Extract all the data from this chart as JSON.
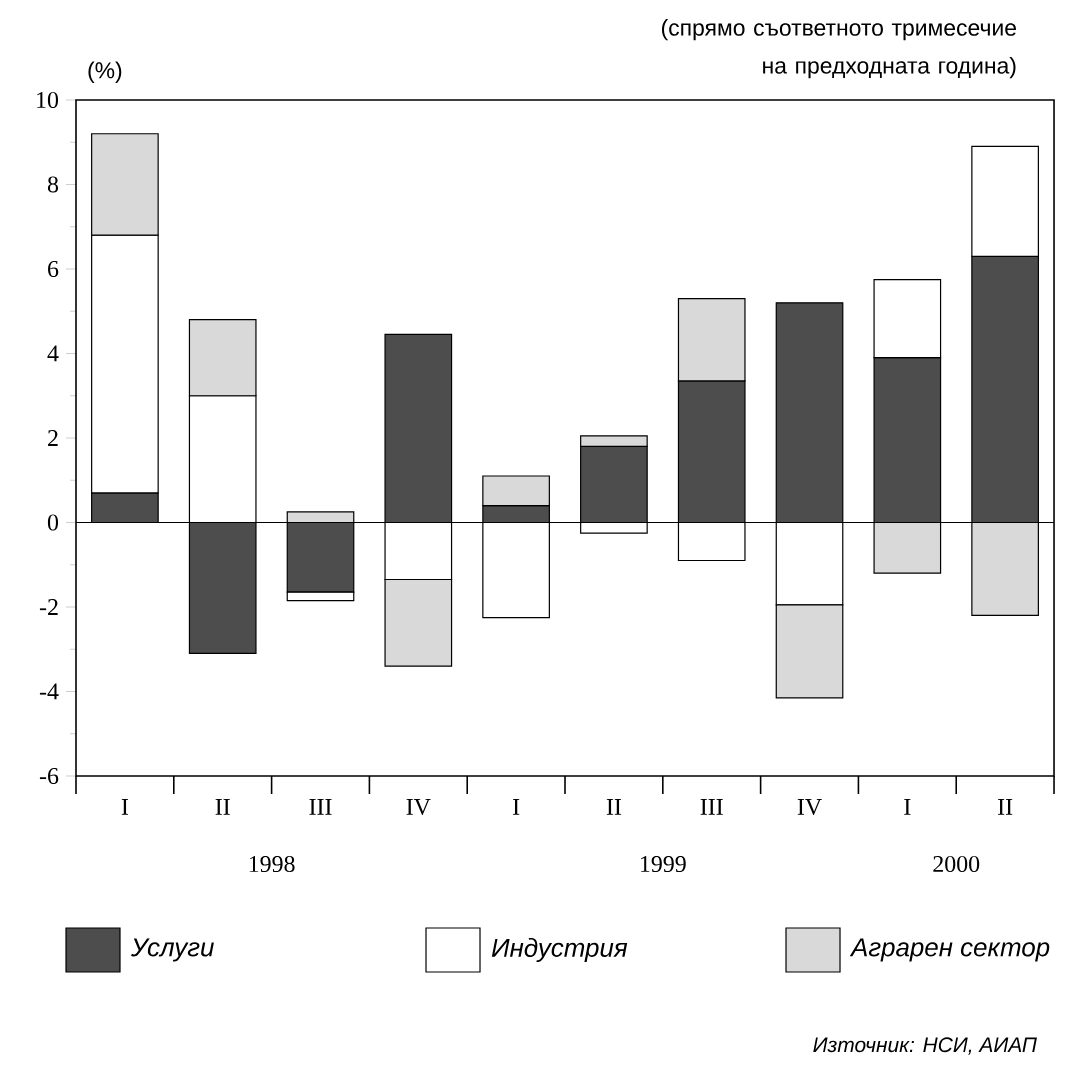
{
  "chart_data": {
    "type": "bar",
    "stacked": true,
    "subtitle": "(спрямо съответното тримесечие на предходната година)",
    "ylabel": "(%)",
    "categories": [
      "I",
      "II",
      "III",
      "IV",
      "I",
      "II",
      "III",
      "IV",
      "I",
      "II"
    ],
    "series": [
      {
        "name": "Услуги",
        "color": "#4d4d4d",
        "values": [
          0.7,
          -3.1,
          -1.65,
          4.45,
          0.4,
          1.8,
          3.35,
          5.2,
          3.9,
          6.3
        ]
      },
      {
        "name": "Индустрия",
        "color": "#ffffff",
        "values": [
          6.1,
          3.0,
          -0.2,
          -1.35,
          -2.25,
          -0.25,
          -0.9,
          -1.95,
          1.85,
          2.6
        ]
      },
      {
        "name": "Аграрен сектор",
        "color": "#d9d9d9",
        "values": [
          2.4,
          1.8,
          0.25,
          -2.05,
          0.7,
          0.25,
          1.95,
          -2.2,
          -1.2,
          -2.2
        ]
      }
    ],
    "ylim": [
      -6,
      10
    ],
    "yticks": [
      -6,
      -4,
      -2,
      0,
      2,
      4,
      6,
      8,
      10
    ],
    "grid": false,
    "ref_lines": [
      {
        "axis": "y",
        "value": 0
      }
    ],
    "legend": "bottom",
    "annotations": [
      "1998",
      "1999",
      "2000",
      "Източник: НСИ, АИАП"
    ]
  }
}
